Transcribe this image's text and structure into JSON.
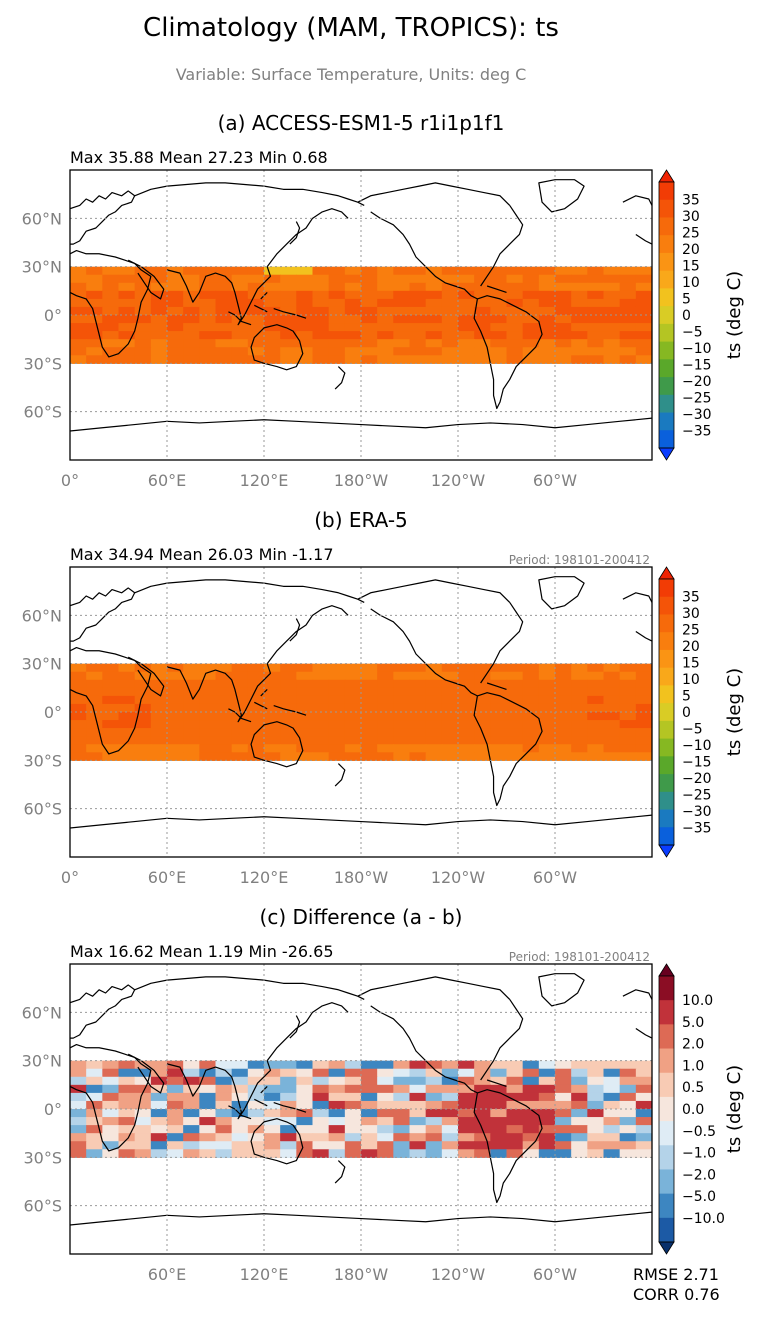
{
  "figure": {
    "title": "Climatology (MAM, TROPICS): ts",
    "subtitle": "Variable: Surface Temperature, Units: deg C"
  },
  "colors": {
    "warm_ramp": [
      "#0a3dff",
      "#0a60dc",
      "#1a7ac0",
      "#2f8f8a",
      "#3f9a4a",
      "#5aa82a",
      "#86b822",
      "#b4c523",
      "#d9cc25",
      "#f2c21e",
      "#f9a81a",
      "#fa9414",
      "#f97e0e",
      "#f66a0b",
      "#f45408",
      "#f23c05",
      "#ef2303"
    ],
    "diff_ramp": [
      "#08306b",
      "#1c5aa5",
      "#3d86c1",
      "#7ab3d9",
      "#b4d3e9",
      "#dfecf5",
      "#f6e6dd",
      "#f8cbb4",
      "#f0a184",
      "#dd6a55",
      "#c1323a",
      "#8b0d24",
      "#67001f"
    ],
    "panel_border": "#000000",
    "grid": "#999999",
    "tick_text": "#808080",
    "period_text": "#808080"
  },
  "panels": [
    {
      "label": "(a) ACCESS-ESM1-5 r1i1p1f1",
      "stats": "Max 35.88 Mean 27.23 Min 0.68",
      "period": "",
      "colorbar_label": "ts (deg C)",
      "colorbar_ticks": [
        "35",
        "30",
        "25",
        "20",
        "15",
        "10",
        "5",
        "0",
        "−5",
        "−10",
        "−15",
        "−20",
        "−25",
        "−30",
        "−35"
      ]
    },
    {
      "label": "(b) ERA-5",
      "stats": "Max 34.94 Mean 26.03 Min -1.17",
      "period": "Period: 198101-200412",
      "colorbar_label": "ts (deg C)",
      "colorbar_ticks": [
        "35",
        "30",
        "25",
        "20",
        "15",
        "10",
        "5",
        "0",
        "−5",
        "−10",
        "−15",
        "−20",
        "−25",
        "−30",
        "−35"
      ]
    },
    {
      "label": "(c) Difference (a - b)",
      "stats": "Max 16.62 Mean 1.19 Min -26.65",
      "period": "Period: 198101-200412",
      "colorbar_label": "ts (deg C)",
      "colorbar_ticks": [
        "10.0",
        "5.0",
        "2.0",
        "1.0",
        "0.5",
        "0.0",
        "−0.5",
        "−1.0",
        "−2.0",
        "−5.0",
        "−10.0"
      ]
    }
  ],
  "footer": {
    "rmse": "RMSE 2.71",
    "corr": "CORR 0.76"
  },
  "chart_data": [
    {
      "type": "heatmap",
      "title": "(a) ACCESS-ESM1-5 r1i1p1f1",
      "x_ticks": [
        "0°",
        "60°E",
        "120°E",
        "180°W",
        "120°W",
        "60°W"
      ],
      "y_ticks": [
        "60°N",
        "30°N",
        "0°",
        "30°S",
        "60°S"
      ],
      "xlim": [
        0,
        360
      ],
      "ylim": [
        -90,
        90
      ],
      "data_band_lat": [
        -30,
        30
      ],
      "colorbar_levels": [
        -35,
        -30,
        -25,
        -20,
        -15,
        -10,
        -5,
        0,
        5,
        10,
        15,
        20,
        25,
        30,
        35
      ],
      "stats": {
        "max": 35.88,
        "mean": 27.23,
        "min": 0.68
      },
      "grid": true
    },
    {
      "type": "heatmap",
      "title": "(b) ERA-5",
      "x_ticks": [
        "0°",
        "60°E",
        "120°E",
        "180°W",
        "120°W",
        "60°W"
      ],
      "y_ticks": [
        "60°N",
        "30°N",
        "0°",
        "30°S",
        "60°S"
      ],
      "xlim": [
        0,
        360
      ],
      "ylim": [
        -90,
        90
      ],
      "data_band_lat": [
        -30,
        30
      ],
      "colorbar_levels": [
        -35,
        -30,
        -25,
        -20,
        -15,
        -10,
        -5,
        0,
        5,
        10,
        15,
        20,
        25,
        30,
        35
      ],
      "stats": {
        "max": 34.94,
        "mean": 26.03,
        "min": -1.17
      },
      "grid": true
    },
    {
      "type": "heatmap",
      "title": "(c) Difference (a - b)",
      "x_ticks": [
        "60°E",
        "120°E",
        "180°W",
        "120°W",
        "60°W"
      ],
      "y_ticks": [
        "60°N",
        "30°N",
        "0°",
        "30°S",
        "60°S"
      ],
      "xlim": [
        0,
        360
      ],
      "ylim": [
        -90,
        90
      ],
      "data_band_lat": [
        -30,
        30
      ],
      "colorbar_levels": [
        -10.0,
        -5.0,
        -2.0,
        -1.0,
        -0.5,
        0.0,
        0.5,
        1.0,
        2.0,
        5.0,
        10.0
      ],
      "stats": {
        "max": 16.62,
        "mean": 1.19,
        "min": -26.65
      },
      "rmse": 2.71,
      "corr": 0.76,
      "grid": true
    }
  ]
}
